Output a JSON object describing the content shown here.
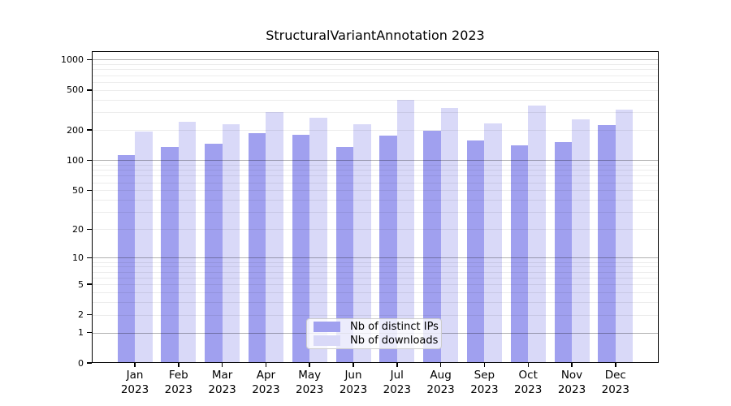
{
  "chart_data": {
    "type": "bar",
    "title": "StructuralVariantAnnotation 2023",
    "categories": [
      "Jan 2023",
      "Feb 2023",
      "Mar 2023",
      "Apr 2023",
      "May 2023",
      "Jun 2023",
      "Jul 2023",
      "Aug 2023",
      "Sep 2023",
      "Oct 2023",
      "Nov 2023",
      "Dec 2023"
    ],
    "series": [
      {
        "name": "Nb of distinct IPs",
        "color": "#a0a0ef",
        "values": [
          113,
          135,
          146,
          187,
          179,
          137,
          175,
          196,
          158,
          141,
          152,
          225
        ]
      },
      {
        "name": "Nb of downloads",
        "color": "#d9d9f8",
        "values": [
          195,
          241,
          229,
          304,
          266,
          229,
          397,
          331,
          231,
          348,
          255,
          321
        ]
      }
    ],
    "xlabel": "",
    "ylabel": "",
    "yscale": "log1p",
    "ylim": [
      0,
      1210
    ],
    "yticks": [
      0,
      1,
      2,
      5,
      10,
      20,
      50,
      100,
      200,
      500,
      1000
    ],
    "major_grid_at": [
      1,
      10,
      100,
      1000
    ],
    "minor_grid_at": [
      2,
      3,
      4,
      5,
      6,
      7,
      8,
      9,
      20,
      30,
      40,
      50,
      60,
      70,
      80,
      90,
      200,
      300,
      400,
      500,
      600,
      700,
      800,
      900
    ],
    "grid": true,
    "legend_position": "lower center",
    "background": "#ffffff"
  }
}
